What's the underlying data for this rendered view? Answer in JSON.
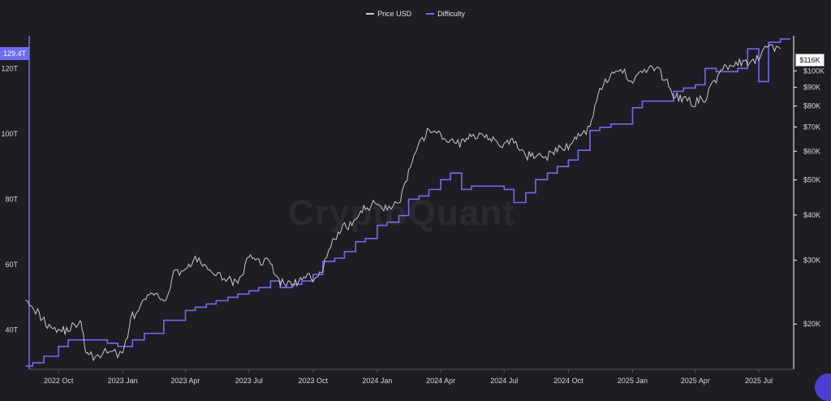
{
  "watermark": "CryptoQuant",
  "legend": [
    {
      "label": "Price USD",
      "color": "#c9c7cf"
    },
    {
      "label": "Difficulty",
      "color": "#6f6cf0"
    }
  ],
  "badges": {
    "left": "129.4T",
    "right": "$116K"
  },
  "chart_data": {
    "type": "line",
    "x_ticks": [
      "2022 Oct",
      "2023 Jan",
      "2023 Apr",
      "2023 Jul",
      "2023 Oct",
      "2024 Jan",
      "2024 Apr",
      "2024 Jul",
      "2024 Oct",
      "2025 Jan",
      "2025 Apr",
      "2025 Jul"
    ],
    "y_left": {
      "label": "",
      "ticks": [
        "40T",
        "60T",
        "80T",
        "100T",
        "120T"
      ],
      "values": [
        40,
        60,
        80,
        100,
        120
      ],
      "range": [
        28,
        130
      ]
    },
    "y_right": {
      "label": "",
      "ticks": [
        "$20K",
        "$30K",
        "$40K",
        "$50K",
        "$60K",
        "$70K",
        "$80K",
        "$90K",
        "$100K"
      ],
      "values": [
        20000,
        30000,
        40000,
        50000,
        60000,
        70000,
        80000,
        90000,
        100000
      ],
      "range": [
        15000,
        125000
      ],
      "scale": "log"
    },
    "series": [
      {
        "name": "Price USD",
        "axis": "right",
        "color": "#c9c7cf",
        "x": [
          "2022-08-15",
          "2022-09-01",
          "2022-09-15",
          "2022-10-01",
          "2022-10-15",
          "2022-11-01",
          "2022-11-10",
          "2022-11-20",
          "2022-12-10",
          "2023-01-01",
          "2023-01-15",
          "2023-02-01",
          "2023-02-15",
          "2023-03-01",
          "2023-03-15",
          "2023-04-01",
          "2023-04-15",
          "2023-05-01",
          "2023-05-15",
          "2023-06-01",
          "2023-06-15",
          "2023-07-01",
          "2023-07-15",
          "2023-08-01",
          "2023-08-15",
          "2023-09-01",
          "2023-09-15",
          "2023-10-01",
          "2023-10-15",
          "2023-11-01",
          "2023-11-15",
          "2023-12-01",
          "2023-12-15",
          "2024-01-01",
          "2024-01-15",
          "2024-02-01",
          "2024-02-15",
          "2024-03-01",
          "2024-03-15",
          "2024-04-01",
          "2024-04-15",
          "2024-05-01",
          "2024-05-15",
          "2024-06-01",
          "2024-06-15",
          "2024-07-01",
          "2024-07-15",
          "2024-08-01",
          "2024-08-15",
          "2024-09-01",
          "2024-09-15",
          "2024-10-01",
          "2024-10-15",
          "2024-11-01",
          "2024-11-15",
          "2024-12-01",
          "2024-12-15",
          "2025-01-01",
          "2025-01-15",
          "2025-02-01",
          "2025-02-15",
          "2025-03-01",
          "2025-03-15",
          "2025-04-01",
          "2025-04-15",
          "2025-05-01",
          "2025-05-15",
          "2025-06-01",
          "2025-06-15",
          "2025-07-01",
          "2025-07-15",
          "2025-08-01"
        ],
        "values": [
          24000,
          21500,
          20000,
          19300,
          19200,
          20500,
          16500,
          16200,
          16800,
          16600,
          21000,
          23000,
          24500,
          22500,
          27500,
          28500,
          30000,
          29000,
          27000,
          27000,
          25500,
          30500,
          30000,
          29500,
          26000,
          25800,
          26500,
          27000,
          28500,
          34500,
          37000,
          38500,
          42000,
          43000,
          42000,
          43000,
          52000,
          62000,
          69000,
          66000,
          64000,
          63000,
          66000,
          67500,
          65000,
          62000,
          64000,
          58000,
          59000,
          58000,
          60500,
          62000,
          66000,
          70000,
          90000,
          96000,
          101000,
          94000,
          100000,
          102000,
          96000,
          86000,
          83000,
          82000,
          84000,
          95000,
          103000,
          105000,
          104000,
          108000,
          118000,
          115000
        ]
      },
      {
        "name": "Difficulty",
        "axis": "left",
        "color": "#6f6cf0",
        "x": [
          "2022-08-15",
          "2022-08-25",
          "2022-09-10",
          "2022-10-01",
          "2022-10-15",
          "2022-12-10",
          "2022-12-25",
          "2023-01-15",
          "2023-02-01",
          "2023-02-15",
          "2023-03-01",
          "2023-03-15",
          "2023-04-01",
          "2023-04-15",
          "2023-05-01",
          "2023-05-15",
          "2023-06-01",
          "2023-06-15",
          "2023-07-01",
          "2023-07-15",
          "2023-08-01",
          "2023-08-15",
          "2023-09-01",
          "2023-09-15",
          "2023-10-01",
          "2023-10-15",
          "2023-11-01",
          "2023-11-15",
          "2023-12-01",
          "2023-12-15",
          "2024-01-01",
          "2024-01-15",
          "2024-02-01",
          "2024-02-15",
          "2024-03-01",
          "2024-03-15",
          "2024-04-01",
          "2024-04-15",
          "2024-05-01",
          "2024-05-15",
          "2024-06-01",
          "2024-06-15",
          "2024-07-01",
          "2024-07-15",
          "2024-08-01",
          "2024-08-15",
          "2024-09-01",
          "2024-09-15",
          "2024-10-01",
          "2024-10-15",
          "2024-11-01",
          "2024-11-15",
          "2024-12-01",
          "2024-12-15",
          "2025-01-01",
          "2025-01-15",
          "2025-02-01",
          "2025-02-15",
          "2025-03-01",
          "2025-03-15",
          "2025-04-01",
          "2025-04-15",
          "2025-05-01",
          "2025-05-15",
          "2025-06-01",
          "2025-06-15",
          "2025-07-01",
          "2025-07-15",
          "2025-08-01"
        ],
        "values": [
          29,
          30,
          32,
          35,
          37,
          36,
          35,
          37,
          39,
          39,
          43,
          43,
          46,
          47,
          48,
          49,
          50,
          51,
          52,
          53,
          55,
          53,
          54,
          55,
          57,
          61,
          62,
          64,
          67,
          68,
          72,
          73,
          75,
          80,
          81,
          83,
          86,
          88,
          83,
          84,
          84,
          84,
          83,
          79,
          82,
          86,
          88,
          90,
          92,
          95,
          101,
          102,
          103,
          103,
          108,
          110,
          110,
          110,
          113,
          114,
          115,
          120,
          119,
          119,
          120,
          126,
          116,
          128,
          129
        ]
      }
    ],
    "legend_position": "top-center",
    "grid": false
  }
}
